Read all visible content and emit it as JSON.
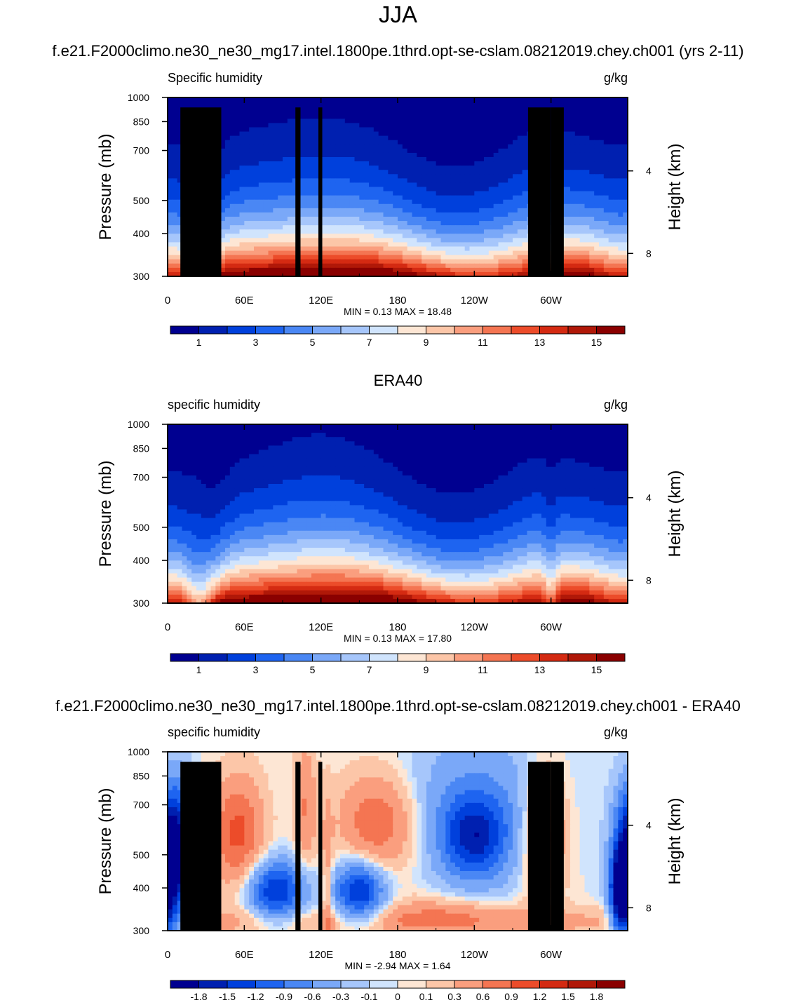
{
  "page": {
    "main_title": "JJA",
    "top_title": "f.e21.F2000climo.ne30_ne30_mg17.intel.1800pe.1thrd.opt-se-cslam.08212019.chey.ch001 (yrs 2-11)",
    "middle_title": "ERA40",
    "bottom_title": "f.e21.F2000climo.ne30_ne30_mg17.intel.1800pe.1thrd.opt-se-cslam.08212019.chey.ch001 - ERA40"
  },
  "colors": {
    "abs_palette": [
      "#000090",
      "#0020b0",
      "#0040dc",
      "#1e64f0",
      "#4a87f4",
      "#7aa8f8",
      "#a6c6fb",
      "#d0e4fd",
      "#fde6d4",
      "#fcc6a8",
      "#fa9e7e",
      "#f47552",
      "#ec4c2a",
      "#d42a12",
      "#b01808",
      "#8a0000"
    ],
    "diff_palette": [
      "#000090",
      "#0020b0",
      "#0040dc",
      "#1e64f0",
      "#4a87f4",
      "#7aa8f8",
      "#a6c6fb",
      "#d0e4fd",
      "#fde6d4",
      "#fcc6a8",
      "#fa9e7e",
      "#f47552",
      "#ec4c2a",
      "#d42a12",
      "#b01808",
      "#8a0000"
    ],
    "topography": "#000000"
  },
  "chart_data": [
    {
      "type": "heatmap",
      "title": "",
      "left_label": "Specific humidity",
      "right_label": "g/kg",
      "xlabel": "",
      "ylabel": "Pressure (mb)",
      "ylabel_right": "Height (km)",
      "x_ticks": [
        "0",
        "60E",
        "120E",
        "180",
        "120W",
        "60W"
      ],
      "y_ticks": [
        "300",
        "400",
        "500",
        "700",
        "850",
        "1000"
      ],
      "y_right_ticks": [
        "8",
        "4"
      ],
      "ylim": [
        1000,
        300
      ],
      "stats": "MIN =   0.13  MAX =  18.48",
      "min": 0.13,
      "max": 18.48,
      "colorbar_labels": [
        "1",
        "3",
        "5",
        "7",
        "9",
        "11",
        "13",
        "15"
      ],
      "topography": true
    },
    {
      "type": "heatmap",
      "title": "ERA40",
      "left_label": "specific humidity",
      "right_label": "g/kg",
      "xlabel": "",
      "ylabel": "Pressure (mb)",
      "ylabel_right": "Height (km)",
      "x_ticks": [
        "0",
        "60E",
        "120E",
        "180",
        "120W",
        "60W"
      ],
      "y_ticks": [
        "300",
        "400",
        "500",
        "700",
        "850",
        "1000"
      ],
      "y_right_ticks": [
        "8",
        "4"
      ],
      "ylim": [
        1000,
        300
      ],
      "stats": "MIN =   0.13  MAX =  17.80",
      "min": 0.13,
      "max": 17.8,
      "colorbar_labels": [
        "1",
        "3",
        "5",
        "7",
        "9",
        "11",
        "13",
        "15"
      ],
      "topography": false
    },
    {
      "type": "heatmap",
      "title": "f.e21.F2000climo.ne30_ne30_mg17.intel.1800pe.1thrd.opt-se-cslam.08212019.chey.ch001 - ERA40",
      "left_label": "specific humidity",
      "right_label": "g/kg",
      "xlabel": "",
      "ylabel": "Pressure (mb)",
      "ylabel_right": "Height (km)",
      "x_ticks": [
        "0",
        "60E",
        "120E",
        "180",
        "120W",
        "60W"
      ],
      "y_ticks": [
        "300",
        "400",
        "500",
        "700",
        "850",
        "1000"
      ],
      "y_right_ticks": [
        "8",
        "4"
      ],
      "ylim": [
        1000,
        300
      ],
      "stats": "MIN =  -2.94  MAX =   1.64",
      "min": -2.94,
      "max": 1.64,
      "colorbar_labels": [
        "-1.8",
        "-1.5",
        "-1.2",
        "-0.9",
        "-0.6",
        "-0.3",
        "-0.1",
        "0",
        "0.1",
        "0.3",
        "0.6",
        "0.9",
        "1.2",
        "1.5",
        "1.8"
      ],
      "topography": true
    }
  ]
}
